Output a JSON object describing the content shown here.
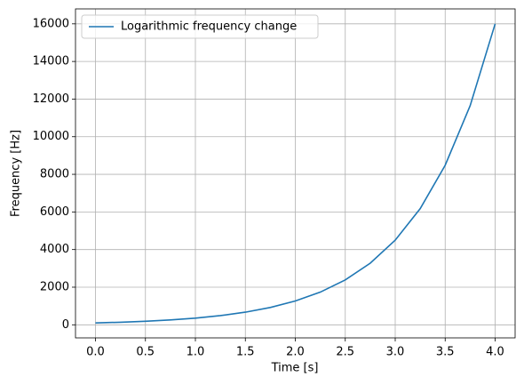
{
  "chart_data": {
    "type": "line",
    "x_label": "Time [s]",
    "y_label": "Frequency [Hz]",
    "x": [
      0,
      0.25,
      0.5,
      0.75,
      1.0,
      1.25,
      1.5,
      1.75,
      2.0,
      2.25,
      2.5,
      2.75,
      3.0,
      3.25,
      3.5,
      3.75,
      4.0
    ],
    "series": [
      {
        "name": "Logarithmic frequency change",
        "color": "#1f77b4",
        "values": [
          100,
          137,
          189,
          259,
          356,
          488,
          671,
          921,
          1265,
          1737,
          2386,
          3276,
          4500,
          6177,
          8483,
          11650,
          16000
        ]
      }
    ],
    "xlim": [
      -0.2,
      4.2
    ],
    "ylim": [
      -695,
      16795
    ],
    "xticks": [
      {
        "value": 0,
        "label": "0.0"
      },
      {
        "value": 0.5,
        "label": "0.5"
      },
      {
        "value": 1,
        "label": "1.0"
      },
      {
        "value": 1.5,
        "label": "1.5"
      },
      {
        "value": 2,
        "label": "2.0"
      },
      {
        "value": 2.5,
        "label": "2.5"
      },
      {
        "value": 3,
        "label": "3.0"
      },
      {
        "value": 3.5,
        "label": "3.5"
      },
      {
        "value": 4,
        "label": "4.0"
      }
    ],
    "yticks": [
      0,
      2000,
      4000,
      6000,
      8000,
      10000,
      12000,
      14000,
      16000
    ],
    "grid": true,
    "legend": "upper left"
  }
}
